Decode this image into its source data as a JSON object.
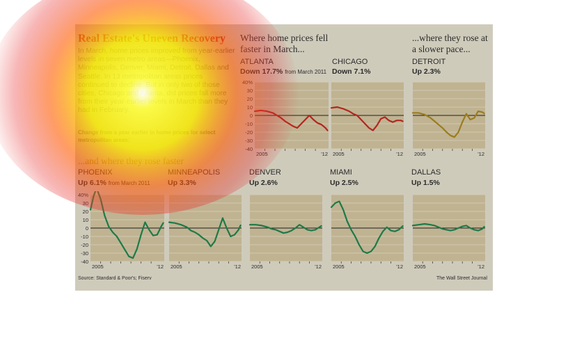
{
  "title": "Real Estate's Uneven Recovery",
  "intro": "In March, home prices improved from year-earlier levels in seven metro areas—Phoenix, Minneapolis, Denver, Miami, Detroit, Dallas and Seattle. In 13 metropolitan areas prices continued to decline. But in only two of those cities, Chicago and Atlanta, did prices fall more from their year-earlier levels in March than they had in February.",
  "note": "Change from a year earlier in home prices for select metropolitan areas:",
  "headings": {
    "falling": "Where home prices fell faster in March...",
    "slower": "...where they rose at a slower pace...",
    "faster": "...and where they rose faster"
  },
  "source": "Source: Standard & Poor's; Fiserv",
  "credit": "The Wall Street Journal",
  "colors": {
    "falling": "#b3261e",
    "slower": "#9c7c1c",
    "faster": "#1d7a48",
    "panel": "#bfb392",
    "card": "#cfcbbb"
  },
  "chart_data": [
    {
      "type": "line",
      "city": "ATLANTA",
      "change": "Down 17.7%",
      "change_note": "from March 2011",
      "x_ticks": [
        "2005",
        "'12"
      ],
      "ylim": [
        -40,
        40
      ],
      "y_ticks": [
        "40%",
        "30",
        "20",
        "10",
        "0",
        "-10",
        "-20",
        "-30",
        "-40"
      ],
      "color": "falling",
      "x": [
        2005,
        2005.6,
        2006.2,
        2006.8,
        2007.2,
        2007.6,
        2008,
        2008.4,
        2008.8,
        2009.2,
        2009.6,
        2010,
        2010.4,
        2010.8,
        2011.2,
        2011.6,
        2012,
        2012.2
      ],
      "values": [
        5,
        6,
        5,
        3,
        0,
        -3,
        -7,
        -10,
        -13,
        -15,
        -10,
        -5,
        0,
        -5,
        -9,
        -11,
        -15,
        -18
      ]
    },
    {
      "type": "line",
      "city": "CHICAGO",
      "change": "Down 7.1%",
      "x_ticks": [
        "2005",
        "'12"
      ],
      "ylim": [
        -40,
        40
      ],
      "color": "falling",
      "x": [
        2005,
        2005.6,
        2006.2,
        2006.8,
        2007.2,
        2007.6,
        2008,
        2008.4,
        2008.8,
        2009.2,
        2009.6,
        2010,
        2010.4,
        2010.8,
        2011.2,
        2011.6,
        2012,
        2012.2
      ],
      "values": [
        9,
        10,
        8,
        5,
        2,
        0,
        -5,
        -10,
        -15,
        -18,
        -12,
        -4,
        -2,
        -6,
        -8,
        -6,
        -6,
        -7
      ]
    },
    {
      "type": "line",
      "city": "DETROIT",
      "change": "Up 2.3%",
      "x_ticks": [
        "2005",
        "'12"
      ],
      "ylim": [
        -40,
        40
      ],
      "color": "slower",
      "x": [
        2005,
        2005.6,
        2006.2,
        2006.8,
        2007.2,
        2007.6,
        2008,
        2008.4,
        2008.8,
        2009.2,
        2009.6,
        2010,
        2010.4,
        2010.8,
        2011.2,
        2011.6,
        2012,
        2012.2
      ],
      "values": [
        3,
        3,
        1,
        -3,
        -7,
        -11,
        -15,
        -20,
        -24,
        -26,
        -20,
        -8,
        2,
        -5,
        -3,
        5,
        4,
        2.3
      ]
    },
    {
      "type": "line",
      "city": "PHOENIX",
      "change": "Up 6.1%",
      "change_note": "from March 2011",
      "x_ticks": [
        "2005",
        "'12"
      ],
      "ylim": [
        -40,
        40
      ],
      "y_ticks": [
        "40%",
        "30",
        "20",
        "10",
        "0",
        "-10",
        "-20",
        "-30",
        "-40"
      ],
      "color": "faster",
      "x": [
        2005,
        2005.3,
        2005.6,
        2006,
        2006.4,
        2006.8,
        2007.2,
        2007.6,
        2008,
        2008.4,
        2008.8,
        2009.2,
        2009.6,
        2010,
        2010.4,
        2010.8,
        2011.2,
        2011.6,
        2012,
        2012.2
      ],
      "values": [
        22,
        38,
        48,
        35,
        15,
        2,
        -5,
        -10,
        -18,
        -26,
        -34,
        -36,
        -25,
        -8,
        7,
        -2,
        -9,
        -8,
        2,
        6.1
      ]
    },
    {
      "type": "line",
      "city": "MINNEAPOLIS",
      "change": "Up 3.3%",
      "x_ticks": [
        "2005",
        "'12"
      ],
      "ylim": [
        -40,
        40
      ],
      "color": "faster",
      "x": [
        2005,
        2005.6,
        2006.2,
        2006.8,
        2007.2,
        2007.6,
        2008,
        2008.4,
        2008.8,
        2009.2,
        2009.6,
        2010,
        2010.4,
        2010.8,
        2011.2,
        2011.6,
        2012,
        2012.2
      ],
      "values": [
        7,
        6,
        4,
        1,
        -3,
        -5,
        -8,
        -12,
        -15,
        -22,
        -16,
        -2,
        12,
        0,
        -10,
        -8,
        -2,
        3.3
      ]
    },
    {
      "type": "line",
      "city": "DENVER",
      "change": "Up 2.6%",
      "x_ticks": [
        "2005",
        "'12"
      ],
      "ylim": [
        -40,
        40
      ],
      "color": "faster",
      "x": [
        2005,
        2005.6,
        2006.2,
        2006.8,
        2007.2,
        2007.6,
        2008,
        2008.4,
        2008.8,
        2009.2,
        2009.6,
        2010,
        2010.4,
        2010.8,
        2011.2,
        2011.6,
        2012,
        2012.2
      ],
      "values": [
        4,
        4,
        3,
        1,
        -1,
        -2,
        -4,
        -6,
        -5,
        -3,
        0,
        4,
        1,
        -2,
        -3,
        -2,
        1,
        2.6
      ]
    },
    {
      "type": "line",
      "city": "MIAMI",
      "change": "Up 2.5%",
      "x_ticks": [
        "2005",
        "'12"
      ],
      "ylim": [
        -40,
        40
      ],
      "color": "faster",
      "x": [
        2005,
        2005.4,
        2005.8,
        2006.2,
        2006.6,
        2007,
        2007.4,
        2007.8,
        2008.2,
        2008.6,
        2009,
        2009.4,
        2009.8,
        2010.2,
        2010.6,
        2011,
        2011.4,
        2011.8,
        2012.2
      ],
      "values": [
        25,
        30,
        32,
        22,
        8,
        -2,
        -10,
        -20,
        -28,
        -30,
        -28,
        -22,
        -12,
        -4,
        1,
        -3,
        -4,
        -2,
        2.5
      ]
    },
    {
      "type": "line",
      "city": "DALLAS",
      "change": "Up 1.5%",
      "x_ticks": [
        "2005",
        "'12"
      ],
      "ylim": [
        -40,
        40
      ],
      "color": "faster",
      "x": [
        2005,
        2005.6,
        2006.2,
        2006.8,
        2007.2,
        2007.6,
        2008,
        2008.4,
        2008.8,
        2009.2,
        2009.6,
        2010,
        2010.4,
        2010.8,
        2011.2,
        2011.6,
        2012,
        2012.2
      ],
      "values": [
        3,
        4,
        5,
        4,
        3,
        1,
        -1,
        -2,
        -3,
        -2,
        0,
        2,
        3,
        0,
        -2,
        -3,
        -1,
        1.5
      ]
    }
  ]
}
